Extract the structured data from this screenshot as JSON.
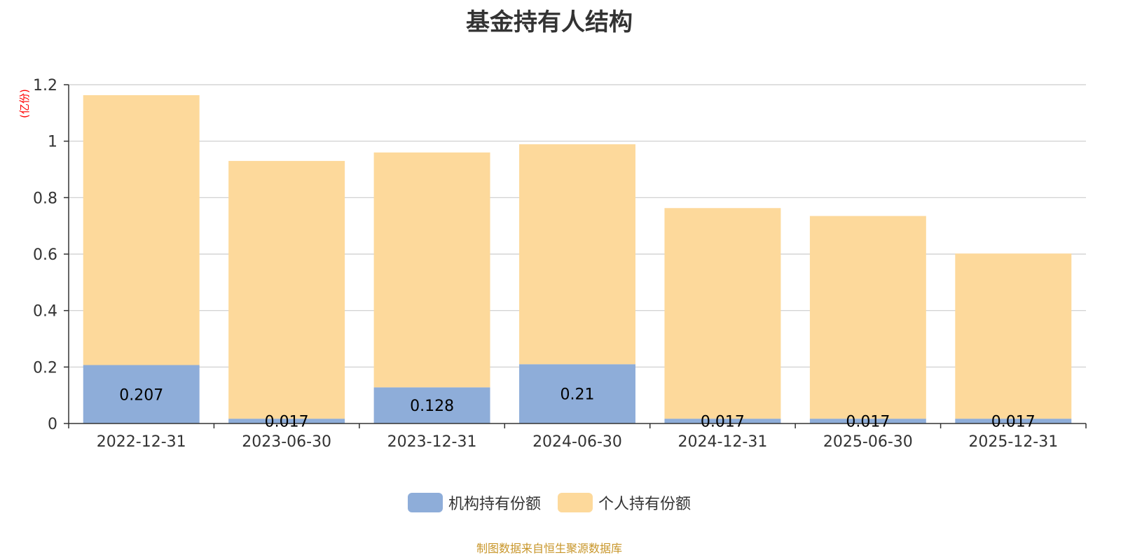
{
  "colors": {
    "institutional": "#8eadd9",
    "individual": "#fdd99b",
    "unit": "#ff0000",
    "source": "#c8962a",
    "axis": "#333333",
    "grid": "#cccccc"
  },
  "legend": [
    {
      "label": "机构持有份额",
      "color": "#8eadd9"
    },
    {
      "label": "个人持有份额",
      "color": "#fdd99b"
    }
  ],
  "source_note": "制图数据来自恒生聚源数据库",
  "chart_data": {
    "type": "bar",
    "stacked": true,
    "title": "基金持有人结构",
    "ylabel": "(亿份)",
    "xlabel": "",
    "ylim": [
      0,
      1.2
    ],
    "yticks": [
      "0",
      "0.2",
      "0.4",
      "0.6",
      "0.8",
      "1",
      "1.2"
    ],
    "grid": true,
    "legend_position": "bottom-center",
    "categories": [
      "2022-12-31",
      "2023-06-30",
      "2023-12-31",
      "2024-06-30",
      "2024-12-31",
      "2025-06-30",
      "2025-12-31"
    ],
    "series": [
      {
        "name": "机构持有份额",
        "values": [
          0.207,
          0.017,
          0.128,
          0.21,
          0.017,
          0.017,
          0.017
        ],
        "labels": [
          "0.207",
          "0.017",
          "0.128",
          "0.21",
          "0.017",
          "0.017",
          "0.017"
        ]
      },
      {
        "name": "个人持有份额",
        "values": [
          0.956,
          0.913,
          0.832,
          0.779,
          0.746,
          0.718,
          0.585
        ]
      }
    ]
  }
}
